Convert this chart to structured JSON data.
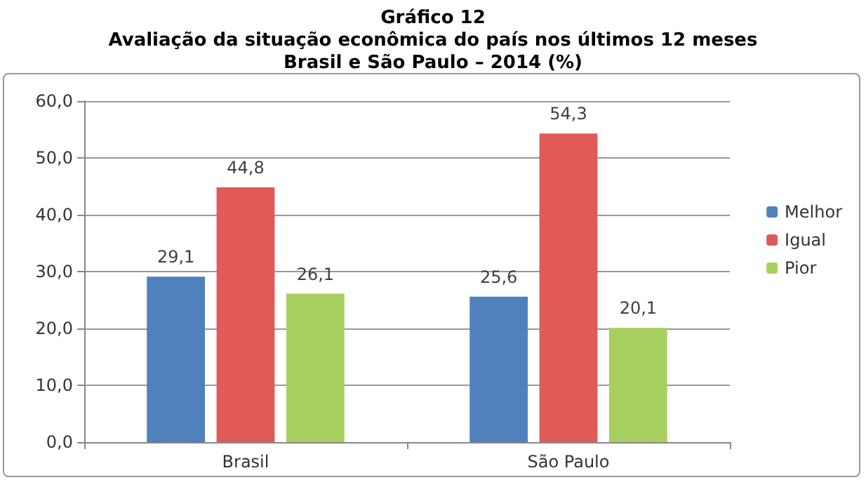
{
  "chart_data": {
    "type": "bar",
    "title": "Gráfico 12\nAvaliação da situação econômica do país nos últimos 12 meses\nBrasil e São Paulo – 2014 (%)",
    "categories": [
      "Brasil",
      "São Paulo"
    ],
    "series": [
      {
        "name": "Melhor",
        "color": "#4f81bd",
        "values": [
          29.1,
          25.6
        ],
        "value_labels": [
          "29,1",
          "25,6"
        ]
      },
      {
        "name": "Igual",
        "color": "#e05a57",
        "values": [
          44.8,
          54.3
        ],
        "value_labels": [
          "44,8",
          "54,3"
        ]
      },
      {
        "name": "Pior",
        "color": "#a8d05e",
        "values": [
          26.1,
          20.1
        ],
        "value_labels": [
          "26,1",
          "20,1"
        ]
      }
    ],
    "ylim": [
      0,
      60
    ],
    "yticks": [
      {
        "value": 0,
        "label": "0,0"
      },
      {
        "value": 10,
        "label": "10,0"
      },
      {
        "value": 20,
        "label": "20,0"
      },
      {
        "value": 30,
        "label": "30,0"
      },
      {
        "value": 40,
        "label": "40,0"
      },
      {
        "value": 50,
        "label": "50,0"
      },
      {
        "value": 60,
        "label": "60,0"
      }
    ],
    "grid": "y",
    "legend": "right"
  }
}
